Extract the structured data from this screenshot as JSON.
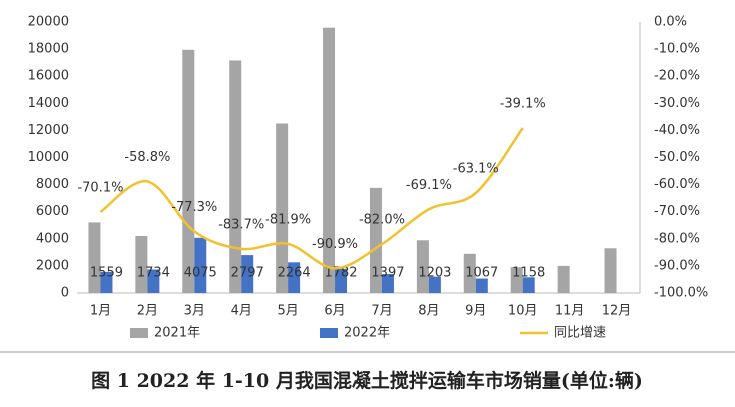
{
  "chart_data": {
    "type": "bar_line",
    "caption": "图 1 2022 年 1-10 月我国混凝土搅拌运输车市场销量(单位:辆)",
    "categories": [
      "1月",
      "2月",
      "3月",
      "4月",
      "5月",
      "6月",
      "7月",
      "8月",
      "9月",
      "10月",
      "11月",
      "12月"
    ],
    "series": [
      {
        "name": "2021年",
        "type": "bar",
        "color": "#a5a5a5",
        "values": [
          5210,
          4210,
          17950,
          17160,
          12510,
          19580,
          7760,
          3890,
          2890,
          1900,
          2000,
          3300
        ]
      },
      {
        "name": "2022年",
        "type": "bar",
        "color": "#4472c4",
        "values": [
          1559,
          1734,
          4075,
          2797,
          2264,
          1782,
          1397,
          1203,
          1067,
          1158,
          null,
          null
        ]
      },
      {
        "name": "同比增速",
        "type": "line",
        "axis": "y2",
        "color": "#f2c12e",
        "values": [
          -70.1,
          -58.8,
          -77.3,
          -83.7,
          -81.9,
          -90.9,
          -82.0,
          -69.1,
          -63.1,
          -39.1,
          null,
          null
        ],
        "value_labels": [
          "-70.1%",
          "-58.8%",
          "-77.3%",
          "-83.7%",
          "-81.9%",
          "-90.9%",
          "-82.0%",
          "-69.1%",
          "-63.1%",
          "-39.1%",
          null,
          null
        ]
      }
    ],
    "ylim": [
      0,
      20000
    ],
    "yticks": [
      0,
      2000,
      4000,
      6000,
      8000,
      10000,
      12000,
      14000,
      16000,
      18000,
      20000
    ],
    "y2lim": [
      -100,
      0
    ],
    "y2ticks": [
      {
        "value": 0,
        "label": "0.0%"
      },
      {
        "value": -10,
        "label": "-10.0%"
      },
      {
        "value": -20,
        "label": "-20.0%"
      },
      {
        "value": -30,
        "label": "-30.0%"
      },
      {
        "value": -40,
        "label": "-40.0%"
      },
      {
        "value": -50,
        "label": "-50.0%"
      },
      {
        "value": -60,
        "label": "-60.0%"
      },
      {
        "value": -70,
        "label": "-70.0%"
      },
      {
        "value": -80,
        "label": "-80.0%"
      },
      {
        "value": -90,
        "label": "-90.0%"
      },
      {
        "value": -100,
        "label": "-100.0%"
      }
    ]
  }
}
